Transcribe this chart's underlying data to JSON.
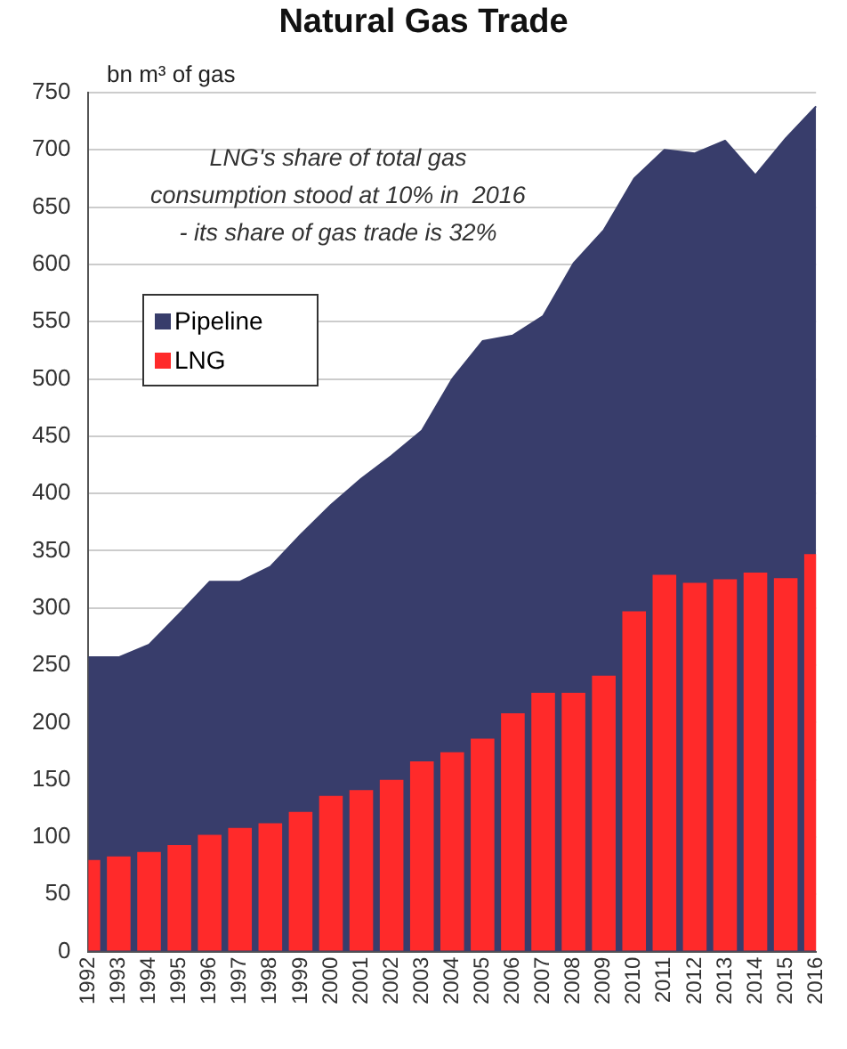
{
  "chart_data": {
    "type": "bar",
    "title": "Natural Gas Trade",
    "ylabel": "bn m³ of gas",
    "categories": [
      "1992",
      "1993",
      "1994",
      "1995",
      "1996",
      "1997",
      "1998",
      "1999",
      "2000",
      "2001",
      "2002",
      "2003",
      "2004",
      "2005",
      "2006",
      "2007",
      "2008",
      "2009",
      "2010",
      "2011",
      "2012",
      "2013",
      "2014",
      "2015",
      "2016"
    ],
    "series": [
      {
        "name": "Pipeline",
        "type": "area",
        "color": "#383d6b",
        "values": [
          257,
          257,
          268,
          295,
          323,
          323,
          336,
          364,
          390,
          413,
          433,
          455,
          500,
          533,
          538,
          555,
          601,
          630,
          675,
          700,
          697,
          708,
          678,
          710,
          738
        ]
      },
      {
        "name": "LNG",
        "type": "bar",
        "color": "#ff2a2a",
        "values": [
          80,
          83,
          87,
          93,
          102,
          108,
          112,
          122,
          136,
          141,
          150,
          166,
          174,
          186,
          208,
          226,
          226,
          241,
          297,
          329,
          322,
          325,
          331,
          326,
          347
        ]
      }
    ],
    "ylim": [
      0,
      750
    ],
    "yticks": [
      0,
      50,
      100,
      150,
      200,
      250,
      300,
      350,
      400,
      450,
      500,
      550,
      600,
      650,
      700,
      750
    ],
    "grid": "y",
    "legend": "top left",
    "annotations": [
      "LNG's share of total gas\nconsumption stood at 10% in  2016\n- its share of gas trade is 32%"
    ]
  }
}
